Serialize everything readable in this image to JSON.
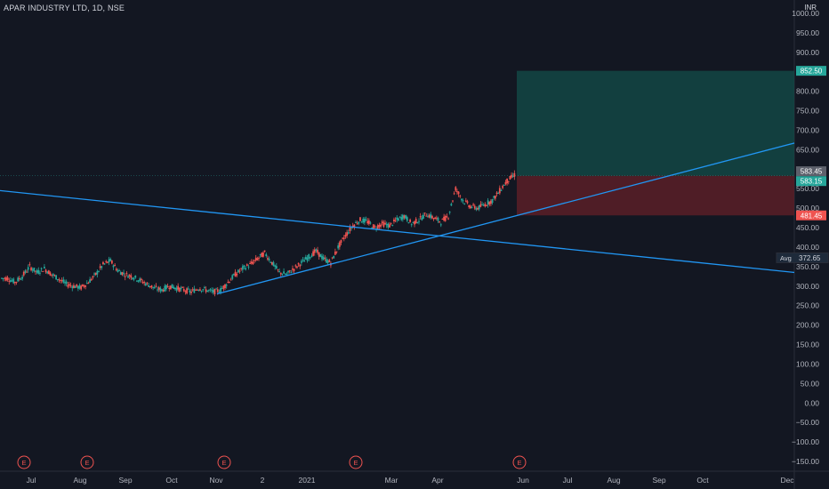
{
  "header": {
    "symbol_title": "APAR INDUSTRY LTD, 1D, NSE",
    "currency": "INR"
  },
  "colors": {
    "background": "#131722",
    "grid": "#1e2230",
    "up": "#26a69a",
    "down": "#ef5350",
    "trendline": "#2196f3",
    "target_zone": "#134e4a",
    "stop_zone": "#5a1f27",
    "axis_text": "#b2b5be"
  },
  "chart_data": {
    "type": "candlestick",
    "title": "APAR INDUSTRY LTD, 1D, NSE",
    "ylabel": "INR",
    "ylim": [
      -165,
      1010
    ],
    "y_ticks": [
      "1000.00",
      "950.00",
      "900.00",
      "850.00",
      "800.00",
      "750.00",
      "700.00",
      "650.00",
      "600.00",
      "550.00",
      "500.00",
      "450.00",
      "400.00",
      "350.00",
      "300.00",
      "250.00",
      "200.00",
      "150.00",
      "100.00",
      "50.00",
      "0.00",
      "−50.00",
      "−100.00",
      "−150.00"
    ],
    "x_ticks": [
      "Jul",
      "Aug",
      "Sep",
      "Oct",
      "Nov",
      "2",
      "2021",
      "Mar",
      "Apr",
      "Jun",
      "Jul",
      "Aug",
      "Sep",
      "Oct",
      "Dec"
    ],
    "grid": false,
    "series": [
      {
        "kind": "price",
        "points": [
          [
            0,
            320
          ],
          [
            1,
            310
          ],
          [
            2,
            325
          ],
          [
            3,
            350
          ],
          [
            4,
            335
          ],
          [
            5,
            345
          ],
          [
            6,
            330
          ],
          [
            7,
            318
          ],
          [
            8,
            305
          ],
          [
            9,
            300
          ],
          [
            10,
            296
          ],
          [
            11,
            310
          ],
          [
            12,
            330
          ],
          [
            13,
            355
          ],
          [
            14,
            365
          ],
          [
            15,
            340
          ],
          [
            16,
            330
          ],
          [
            17,
            325
          ],
          [
            18,
            315
          ],
          [
            19,
            305
          ],
          [
            20,
            295
          ],
          [
            21,
            290
          ],
          [
            22,
            300
          ],
          [
            23,
            295
          ],
          [
            24,
            290
          ],
          [
            25,
            285
          ],
          [
            26,
            295
          ],
          [
            27,
            290
          ],
          [
            28,
            285
          ],
          [
            29,
            290
          ],
          [
            30,
            310
          ],
          [
            31,
            330
          ],
          [
            32,
            345
          ],
          [
            33,
            355
          ],
          [
            34,
            370
          ],
          [
            35,
            385
          ],
          [
            36,
            360
          ],
          [
            37,
            335
          ],
          [
            38,
            330
          ],
          [
            39,
            345
          ],
          [
            40,
            360
          ],
          [
            41,
            375
          ],
          [
            42,
            390
          ],
          [
            43,
            370
          ],
          [
            44,
            360
          ],
          [
            45,
            400
          ],
          [
            46,
            430
          ],
          [
            47,
            455
          ],
          [
            48,
            470
          ],
          [
            49,
            465
          ],
          [
            50,
            450
          ],
          [
            51,
            460
          ],
          [
            52,
            455
          ],
          [
            53,
            470
          ],
          [
            54,
            480
          ],
          [
            55,
            460
          ],
          [
            56,
            470
          ],
          [
            57,
            485
          ],
          [
            58,
            475
          ],
          [
            59,
            465
          ],
          [
            60,
            480
          ],
          [
            61,
            550
          ],
          [
            62,
            520
          ],
          [
            63,
            505
          ],
          [
            64,
            500
          ],
          [
            65,
            510
          ],
          [
            66,
            520
          ],
          [
            67,
            545
          ],
          [
            68,
            570
          ],
          [
            69,
            585
          ]
        ]
      }
    ],
    "trendlines": [
      {
        "from": [
          -1,
          545
        ],
        "to": [
          154,
          335
        ]
      },
      {
        "from": [
          23,
          280
        ],
        "to": [
          154,
          667
        ]
      }
    ],
    "position": {
      "entry": 583.15,
      "target": 852.5,
      "stop": 481.45
    },
    "price_labels": [
      {
        "text": "852.50",
        "value": 852.5,
        "color": "#26a69a"
      },
      {
        "text": "583.45",
        "value": 583.45,
        "color": "#5d606b"
      },
      {
        "text": "583.15",
        "value": 583.15,
        "color": "#26a69a"
      },
      {
        "text": "481.45",
        "value": 481.45,
        "color": "#ef5350"
      }
    ],
    "avg_label": {
      "tag": "Avg",
      "text": "372.65",
      "value": 372.65
    },
    "events": [
      {
        "label": "E",
        "x": 0
      },
      {
        "label": "E",
        "x": 8
      },
      {
        "label": "E",
        "x": 23
      },
      {
        "label": "E",
        "x": 38
      },
      {
        "label": "E",
        "x": 55
      }
    ]
  }
}
